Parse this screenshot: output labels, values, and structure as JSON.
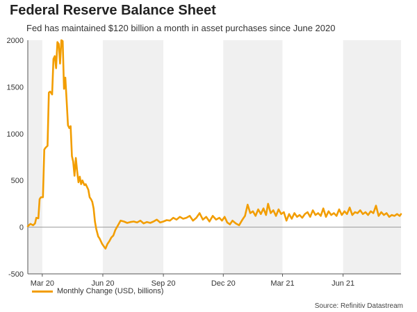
{
  "title": "Federal Reserve Balance Sheet",
  "subtitle": "Fed has maintained $120 billion a month in asset purchases since June 2020",
  "source": "Source: Refinitiv Datastream",
  "chart_data": {
    "type": "line",
    "title": "Federal Reserve Balance Sheet",
    "subtitle": "Fed has maintained $120 billion a month in asset purchases since June 2020",
    "ylim": [
      -500,
      2000
    ],
    "yticks": [
      2000,
      1500,
      1000,
      500,
      0,
      -500
    ],
    "xticks": [
      {
        "label": "Mar 20",
        "date": "2020-03-01"
      },
      {
        "label": "Jun 20",
        "date": "2020-06-01"
      },
      {
        "label": "Sep 20",
        "date": "2020-09-01"
      },
      {
        "label": "Dec 20",
        "date": "2020-12-01"
      },
      {
        "label": "Mar 21",
        "date": "2021-03-01"
      },
      {
        "label": "Jun 21",
        "date": "2021-06-01"
      }
    ],
    "xlim": [
      "2020-02-08",
      "2021-08-28"
    ],
    "shaded_periods": [
      [
        "2020-02-08",
        "2020-03-01"
      ],
      [
        "2020-06-01",
        "2020-09-01"
      ],
      [
        "2020-12-01",
        "2021-03-01"
      ],
      [
        "2021-06-01",
        "2021-08-28"
      ]
    ],
    "colors": {
      "line": "#f29d00",
      "shade": "#f0f0f0",
      "zero": "#999999"
    },
    "series": [
      {
        "name": "Monthly Change (USD, billions)",
        "points": [
          [
            "2020-02-08",
            10
          ],
          [
            "2020-02-12",
            35
          ],
          [
            "2020-02-16",
            20
          ],
          [
            "2020-02-19",
            40
          ],
          [
            "2020-02-21",
            100
          ],
          [
            "2020-02-24",
            95
          ],
          [
            "2020-02-26",
            300
          ],
          [
            "2020-02-28",
            320
          ],
          [
            "2020-03-02",
            320
          ],
          [
            "2020-03-04",
            830
          ],
          [
            "2020-03-06",
            850
          ],
          [
            "2020-03-09",
            870
          ],
          [
            "2020-03-11",
            1440
          ],
          [
            "2020-03-13",
            1450
          ],
          [
            "2020-03-16",
            1420
          ],
          [
            "2020-03-18",
            1800
          ],
          [
            "2020-03-20",
            1830
          ],
          [
            "2020-03-22",
            1700
          ],
          [
            "2020-03-24",
            1980
          ],
          [
            "2020-03-26",
            1960
          ],
          [
            "2020-03-28",
            1750
          ],
          [
            "2020-03-30",
            2000
          ],
          [
            "2020-04-01",
            1990
          ],
          [
            "2020-04-03",
            1480
          ],
          [
            "2020-04-05",
            1600
          ],
          [
            "2020-04-07",
            1350
          ],
          [
            "2020-04-09",
            1090
          ],
          [
            "2020-04-11",
            1060
          ],
          [
            "2020-04-13",
            1080
          ],
          [
            "2020-04-15",
            760
          ],
          [
            "2020-04-17",
            700
          ],
          [
            "2020-04-19",
            550
          ],
          [
            "2020-04-21",
            740
          ],
          [
            "2020-04-23",
            600
          ],
          [
            "2020-04-25",
            480
          ],
          [
            "2020-04-27",
            540
          ],
          [
            "2020-04-29",
            460
          ],
          [
            "2020-05-01",
            500
          ],
          [
            "2020-05-04",
            450
          ],
          [
            "2020-05-06",
            460
          ],
          [
            "2020-05-08",
            430
          ],
          [
            "2020-05-10",
            400
          ],
          [
            "2020-05-12",
            320
          ],
          [
            "2020-05-14",
            300
          ],
          [
            "2020-05-16",
            270
          ],
          [
            "2020-05-18",
            200
          ],
          [
            "2020-05-20",
            60
          ],
          [
            "2020-05-22",
            -20
          ],
          [
            "2020-05-25",
            -100
          ],
          [
            "2020-05-27",
            -120
          ],
          [
            "2020-05-29",
            -150
          ],
          [
            "2020-05-31",
            -180
          ],
          [
            "2020-06-02",
            -200
          ],
          [
            "2020-06-05",
            -230
          ],
          [
            "2020-06-08",
            -180
          ],
          [
            "2020-06-11",
            -150
          ],
          [
            "2020-06-14",
            -110
          ],
          [
            "2020-06-17",
            -90
          ],
          [
            "2020-06-20",
            -30
          ],
          [
            "2020-06-24",
            20
          ],
          [
            "2020-06-28",
            70
          ],
          [
            "2020-07-03",
            60
          ],
          [
            "2020-07-08",
            45
          ],
          [
            "2020-07-13",
            55
          ],
          [
            "2020-07-18",
            60
          ],
          [
            "2020-07-23",
            50
          ],
          [
            "2020-07-28",
            70
          ],
          [
            "2020-08-02",
            40
          ],
          [
            "2020-08-07",
            55
          ],
          [
            "2020-08-12",
            45
          ],
          [
            "2020-08-17",
            60
          ],
          [
            "2020-08-22",
            80
          ],
          [
            "2020-08-27",
            50
          ],
          [
            "2020-09-01",
            60
          ],
          [
            "2020-09-06",
            75
          ],
          [
            "2020-09-11",
            70
          ],
          [
            "2020-09-16",
            100
          ],
          [
            "2020-09-21",
            80
          ],
          [
            "2020-09-26",
            110
          ],
          [
            "2020-10-01",
            90
          ],
          [
            "2020-10-06",
            100
          ],
          [
            "2020-10-11",
            120
          ],
          [
            "2020-10-16",
            70
          ],
          [
            "2020-10-21",
            100
          ],
          [
            "2020-10-26",
            150
          ],
          [
            "2020-10-31",
            80
          ],
          [
            "2020-11-05",
            110
          ],
          [
            "2020-11-10",
            60
          ],
          [
            "2020-11-15",
            120
          ],
          [
            "2020-11-20",
            80
          ],
          [
            "2020-11-25",
            100
          ],
          [
            "2020-11-29",
            70
          ],
          [
            "2020-12-03",
            110
          ],
          [
            "2020-12-07",
            50
          ],
          [
            "2020-12-11",
            30
          ],
          [
            "2020-12-15",
            70
          ],
          [
            "2020-12-20",
            40
          ],
          [
            "2020-12-25",
            20
          ],
          [
            "2020-12-30",
            80
          ],
          [
            "2021-01-03",
            120
          ],
          [
            "2021-01-07",
            240
          ],
          [
            "2021-01-11",
            150
          ],
          [
            "2021-01-15",
            170
          ],
          [
            "2021-01-19",
            120
          ],
          [
            "2021-01-23",
            190
          ],
          [
            "2021-01-27",
            140
          ],
          [
            "2021-01-31",
            200
          ],
          [
            "2021-02-04",
            130
          ],
          [
            "2021-02-07",
            250
          ],
          [
            "2021-02-11",
            150
          ],
          [
            "2021-02-15",
            180
          ],
          [
            "2021-02-19",
            120
          ],
          [
            "2021-02-23",
            190
          ],
          [
            "2021-02-27",
            140
          ],
          [
            "2021-03-03",
            160
          ],
          [
            "2021-03-07",
            70
          ],
          [
            "2021-03-11",
            140
          ],
          [
            "2021-03-15",
            90
          ],
          [
            "2021-03-19",
            150
          ],
          [
            "2021-03-23",
            110
          ],
          [
            "2021-03-27",
            130
          ],
          [
            "2021-03-31",
            100
          ],
          [
            "2021-04-04",
            140
          ],
          [
            "2021-04-08",
            160
          ],
          [
            "2021-04-12",
            110
          ],
          [
            "2021-04-16",
            180
          ],
          [
            "2021-04-20",
            130
          ],
          [
            "2021-04-24",
            150
          ],
          [
            "2021-04-28",
            120
          ],
          [
            "2021-05-02",
            200
          ],
          [
            "2021-05-06",
            110
          ],
          [
            "2021-05-10",
            170
          ],
          [
            "2021-05-14",
            130
          ],
          [
            "2021-05-18",
            150
          ],
          [
            "2021-05-22",
            120
          ],
          [
            "2021-05-26",
            190
          ],
          [
            "2021-05-30",
            130
          ],
          [
            "2021-06-03",
            170
          ],
          [
            "2021-06-07",
            140
          ],
          [
            "2021-06-11",
            210
          ],
          [
            "2021-06-15",
            130
          ],
          [
            "2021-06-19",
            160
          ],
          [
            "2021-06-23",
            150
          ],
          [
            "2021-06-27",
            180
          ],
          [
            "2021-07-01",
            140
          ],
          [
            "2021-07-05",
            160
          ],
          [
            "2021-07-09",
            130
          ],
          [
            "2021-07-13",
            170
          ],
          [
            "2021-07-17",
            150
          ],
          [
            "2021-07-21",
            230
          ],
          [
            "2021-07-25",
            120
          ],
          [
            "2021-07-29",
            160
          ],
          [
            "2021-08-02",
            130
          ],
          [
            "2021-08-06",
            150
          ],
          [
            "2021-08-10",
            110
          ],
          [
            "2021-08-14",
            130
          ],
          [
            "2021-08-18",
            120
          ],
          [
            "2021-08-22",
            140
          ],
          [
            "2021-08-26",
            120
          ],
          [
            "2021-08-28",
            140
          ]
        ]
      }
    ],
    "grid": false,
    "legend_position": "bottom-left"
  }
}
